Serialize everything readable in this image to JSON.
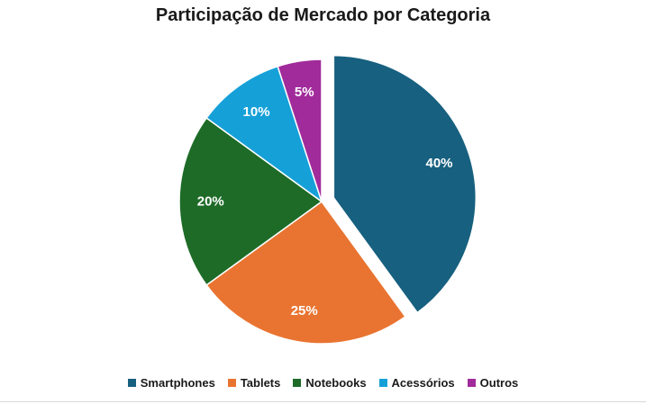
{
  "chart_data": {
    "type": "pie",
    "title": "Participação de Mercado por Categoria",
    "categories": [
      "Smartphones",
      "Tablets",
      "Notebooks",
      "Acessórios",
      "Outros"
    ],
    "values": [
      40,
      25,
      20,
      10,
      5
    ],
    "labels": [
      "40%",
      "25%",
      "20%",
      "10%",
      "5%"
    ],
    "colors": [
      "#17607f",
      "#e97431",
      "#1d6b27",
      "#16a0d8",
      "#a12b9a"
    ],
    "exploded": "Smartphones",
    "legend": "bottom"
  }
}
